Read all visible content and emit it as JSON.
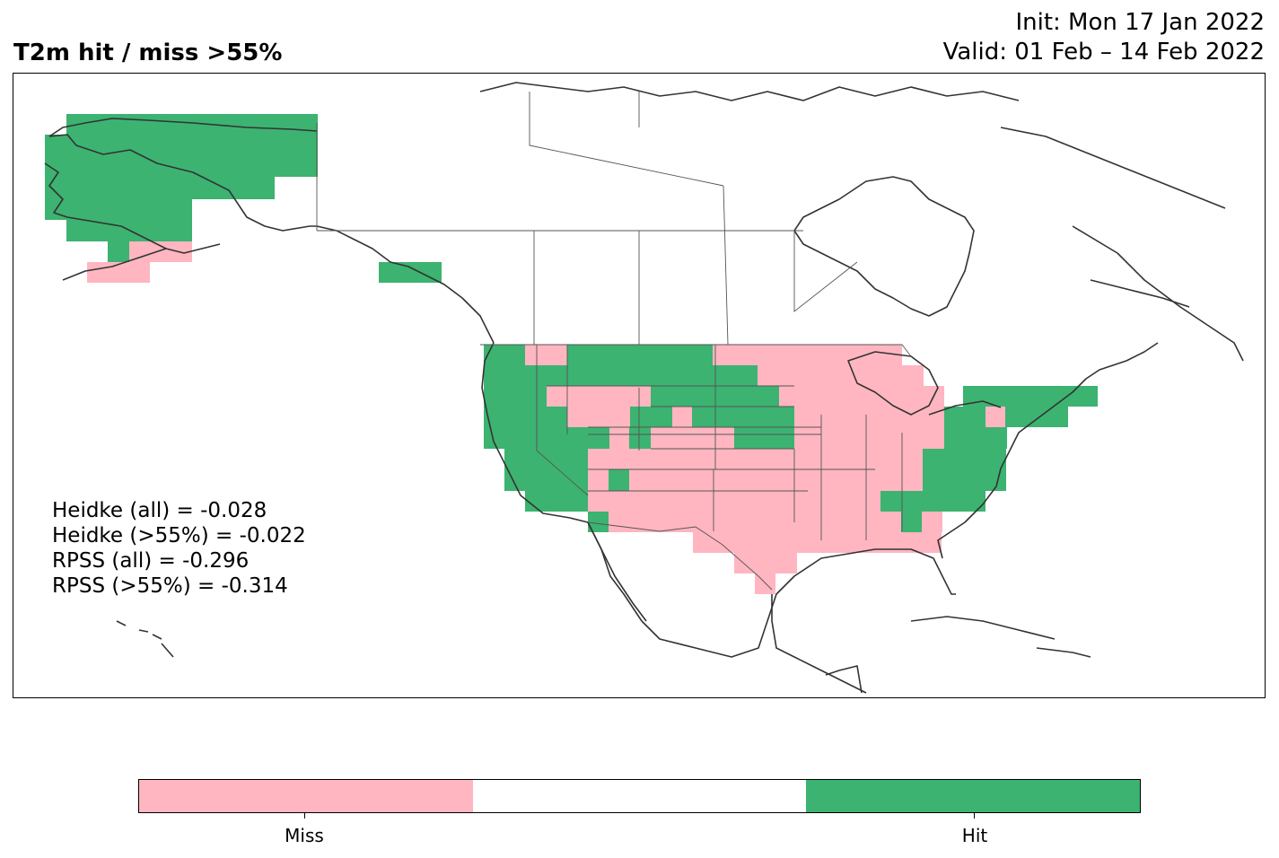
{
  "header": {
    "title": "T2m hit / miss  >55%",
    "init": "Init: Mon 17 Jan 2022",
    "valid": "Valid: 01 Feb – 14 Feb 2022"
  },
  "stats": [
    "Heidke (all) = -0.028",
    "Heidke (>55%) = -0.022",
    "RPSS (all) = -0.296",
    "RPSS (>55%) = -0.314"
  ],
  "legend": {
    "categories": [
      {
        "label": "Miss",
        "color": "#ffb6c1"
      },
      {
        "label": "",
        "color": "#ffffff"
      },
      {
        "label": "Hit",
        "color": "#3cb371"
      }
    ]
  },
  "colors": {
    "miss": "#ffb6c1",
    "hit": "#3cb371",
    "coast": "#333333",
    "border": "#555555"
  }
}
